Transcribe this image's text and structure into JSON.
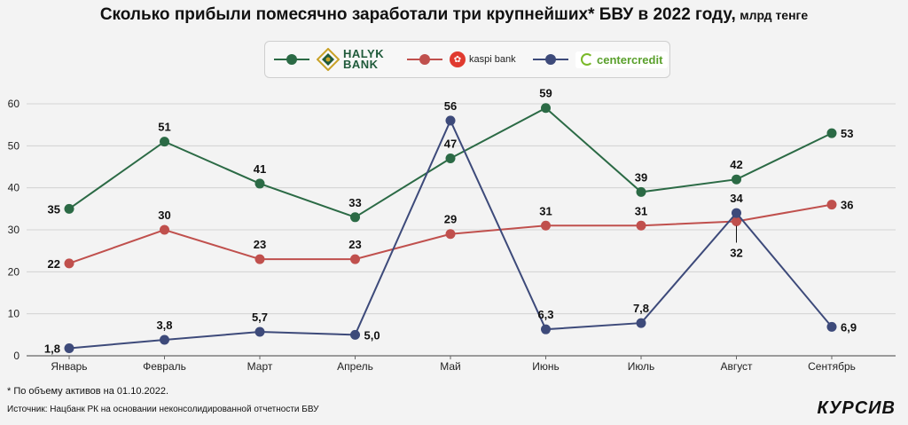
{
  "title": {
    "main": "Сколько прибыли помесячно заработали три крупнейших* БВУ в 2022 году,",
    "unit": "млрд тенге"
  },
  "legend": {
    "halyk": {
      "line1": "HALYK",
      "line2": "BANK"
    },
    "kaspi": "kaspi bank",
    "centercredit": "centercredit"
  },
  "footnote": "* По объему активов на 01.10.2022.",
  "source": "Источник: Нацбанк РК на основании неконсолидированной отчетности БВУ",
  "brandmark": "КУРСИВ",
  "chart_data": {
    "type": "line",
    "categories": [
      "Январь",
      "Февраль",
      "Март",
      "Апрель",
      "Май",
      "Июнь",
      "Июль",
      "Август",
      "Сентябрь"
    ],
    "ylim": [
      0,
      60
    ],
    "yticks": [
      0,
      10,
      20,
      30,
      40,
      50,
      60
    ],
    "grid": true,
    "legend_position": "top",
    "series": [
      {
        "key": "halyk",
        "color": "#2b6a45",
        "values": [
          35,
          51,
          41,
          33,
          47,
          59,
          39,
          42,
          53
        ],
        "labels": [
          "35",
          "51",
          "41",
          "33",
          "47",
          "59",
          "39",
          "42",
          "53"
        ]
      },
      {
        "key": "kaspi",
        "color": "#c0504d",
        "values": [
          22,
          30,
          23,
          23,
          29,
          31,
          31,
          32,
          36
        ],
        "labels": [
          "22",
          "30",
          "23",
          "23",
          "29",
          "31",
          "31",
          "32",
          "36"
        ]
      },
      {
        "key": "centercredit",
        "color": "#3d4a7a",
        "values": [
          1.8,
          3.8,
          5.7,
          5.0,
          56,
          6.3,
          7.8,
          34,
          6.9
        ],
        "labels": [
          "1,8",
          "3,8",
          "5,7",
          "5,0",
          "56",
          "6,3",
          "7,8",
          "34",
          "6,9"
        ]
      }
    ]
  }
}
